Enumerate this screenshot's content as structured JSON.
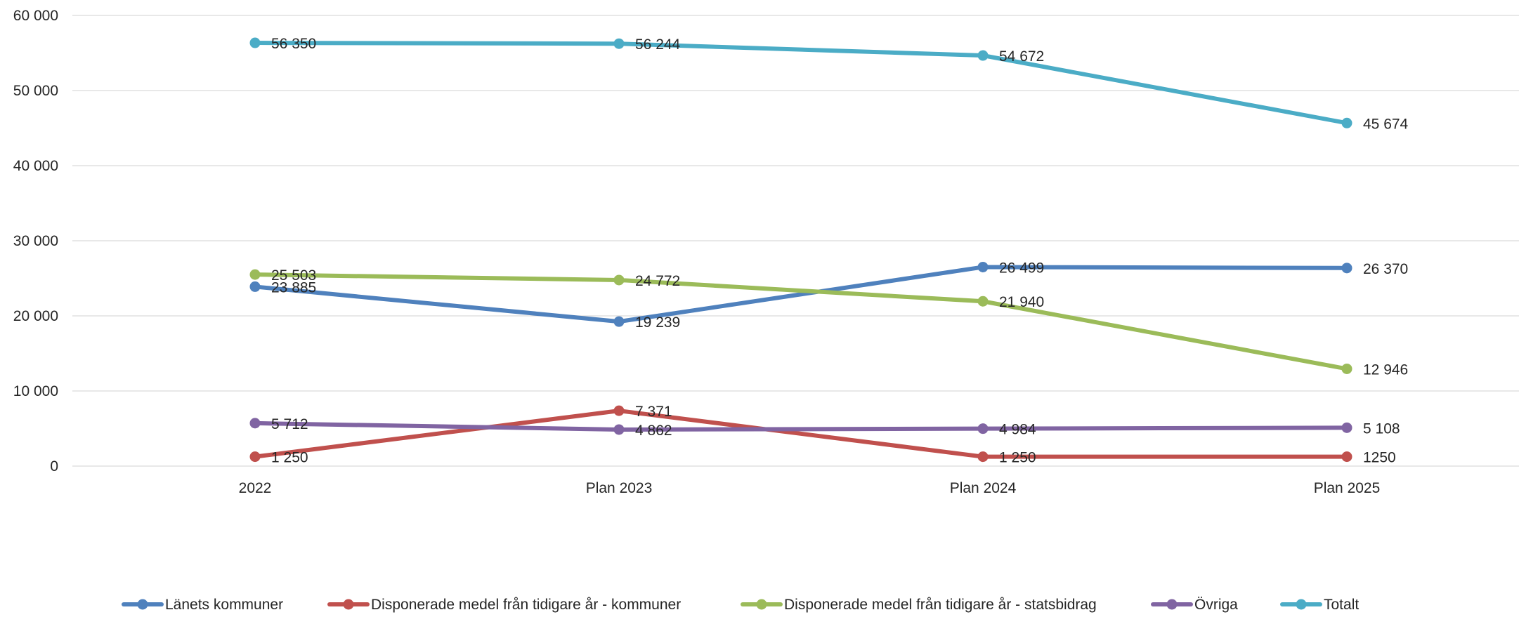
{
  "chart_data": {
    "type": "line",
    "title": "",
    "xlabel": "",
    "ylabel": "",
    "categories": [
      "2022",
      "Plan 2023",
      "Plan 2024",
      "Plan 2025"
    ],
    "ylim": [
      0,
      60000
    ],
    "yticks": [
      {
        "value": 0,
        "label": "0"
      },
      {
        "value": 10000,
        "label": "10 000"
      },
      {
        "value": 20000,
        "label": "20 000"
      },
      {
        "value": 30000,
        "label": "30 000"
      },
      {
        "value": 40000,
        "label": "40 000"
      },
      {
        "value": 50000,
        "label": "50 000"
      },
      {
        "value": 60000,
        "label": "60 000"
      }
    ],
    "grid": true,
    "legend": "bottom",
    "series": [
      {
        "name": "Länets kommuner",
        "color": "#4f81bd",
        "values": [
          23885,
          19239,
          26499,
          26370
        ],
        "labels": [
          "23 885",
          "19 239",
          "26 499",
          "26 370"
        ]
      },
      {
        "name": "Disponerade medel från tidigare år -  kommuner",
        "color": "#c0504d",
        "values": [
          1250,
          7371,
          1250,
          1250
        ],
        "labels": [
          "1 250",
          "7 371",
          "1 250",
          "1250"
        ]
      },
      {
        "name": "Disponerade medel från tidigare år - statsbidrag",
        "color": "#9bbb59",
        "values": [
          25503,
          24772,
          21940,
          12946
        ],
        "labels": [
          "25 503",
          "24 772",
          "21 940",
          "12 946"
        ]
      },
      {
        "name": "Övriga",
        "color": "#8064a2",
        "values": [
          5712,
          4862,
          4984,
          5108
        ],
        "labels": [
          "5 712",
          "4 862",
          "4 984",
          "5 108"
        ]
      },
      {
        "name": "Totalt",
        "color": "#4bacc6",
        "values": [
          56350,
          56244,
          54672,
          45674
        ],
        "labels": [
          "56 350",
          "56 244",
          "54 672",
          "45 674"
        ]
      }
    ]
  }
}
